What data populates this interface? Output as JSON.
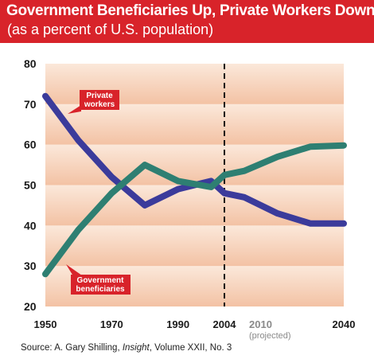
{
  "header": {
    "title": "Government Beneficiaries Up, Private Workers Down",
    "subtitle": "(as a percent of U.S. population)"
  },
  "source": {
    "prefix": "Source: A. Gary Shilling, ",
    "publication": "Insight",
    "suffix": ", Volume XXII, No. 3"
  },
  "colors": {
    "header_red": "#d8232a",
    "private_workers": "#3b3b9b",
    "government_beneficiaries": "#2e7f72",
    "band_light": "#fbe8da",
    "band_dark": "#f3c2a4"
  },
  "chart_data": {
    "type": "line",
    "title": "Government Beneficiaries Up, Private Workers Down",
    "subtitle": "(as a percent of U.S. population)",
    "xlabel": "",
    "ylabel": "",
    "ylim": [
      20,
      80
    ],
    "xlim": [
      1950,
      2040
    ],
    "y_ticks": [
      20,
      30,
      40,
      50,
      60,
      70,
      80
    ],
    "x_ticks": [
      {
        "value": 1950,
        "label": "1950",
        "sub": ""
      },
      {
        "value": 1970,
        "label": "1970",
        "sub": ""
      },
      {
        "value": 1990,
        "label": "1990",
        "sub": ""
      },
      {
        "value": 2004,
        "label": "2004",
        "sub": ""
      },
      {
        "value": 2010,
        "label": "2010",
        "sub": "(projected)"
      },
      {
        "value": 2040,
        "label": "2040",
        "sub": ""
      }
    ],
    "projection_start": 2004,
    "grid": true,
    "series": [
      {
        "name": "Private workers",
        "color": "#3b3b9b",
        "x": [
          1950,
          1960,
          1970,
          1980,
          1990,
          2000,
          2004,
          2010,
          2020,
          2030,
          2040
        ],
        "y": [
          72,
          61,
          52,
          45,
          49,
          51,
          48,
          47,
          43,
          40.5,
          40.5
        ]
      },
      {
        "name": "Government beneficiaries",
        "color": "#2e7f72",
        "x": [
          1950,
          1960,
          1970,
          1980,
          1990,
          2000,
          2004,
          2010,
          2020,
          2030,
          2040
        ],
        "y": [
          28,
          39,
          48,
          55,
          51,
          49.5,
          52.5,
          53.5,
          57,
          59.5,
          59.8
        ]
      }
    ],
    "annotations": [
      {
        "text_lines": [
          "Private",
          "workers"
        ],
        "series": "Private workers"
      },
      {
        "text_lines": [
          "Government",
          "beneficiaries"
        ],
        "series": "Government beneficiaries"
      }
    ]
  }
}
